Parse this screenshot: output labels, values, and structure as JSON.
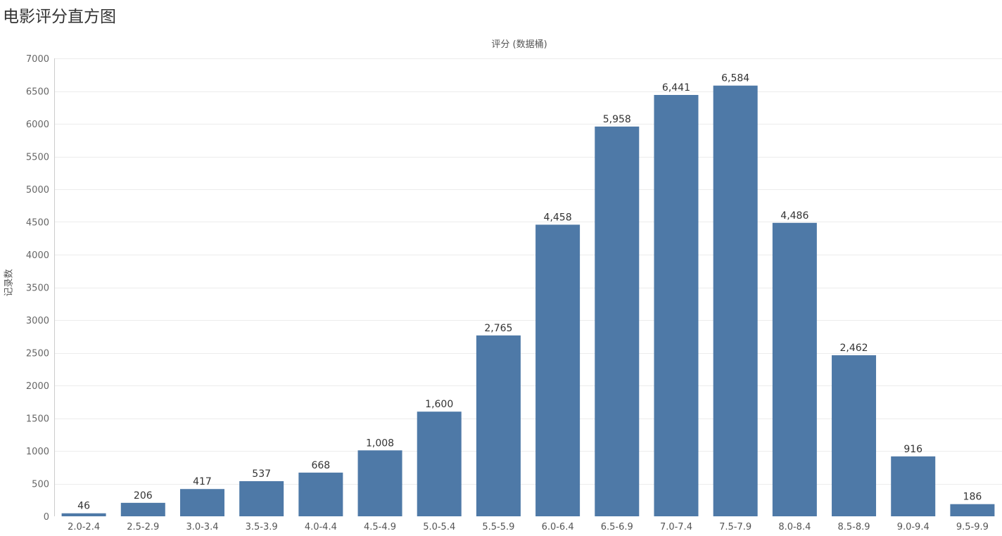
{
  "title": "电影评分直方图",
  "colors": {
    "bar": "#4e79a7",
    "grid": "#ececec",
    "axis": "#cccccc"
  },
  "chart_data": {
    "type": "bar",
    "title": "电影评分直方图",
    "xlabel": "评分 (数据桶)",
    "ylabel": "记录数",
    "ylim": [
      0,
      7000
    ],
    "yticks": [
      0,
      500,
      1000,
      1500,
      2000,
      2500,
      3000,
      3500,
      4000,
      4500,
      5000,
      5500,
      6000,
      6500,
      7000
    ],
    "grid": true,
    "categories": [
      "2.0-2.4",
      "2.5-2.9",
      "3.0-3.4",
      "3.5-3.9",
      "4.0-4.4",
      "4.5-4.9",
      "5.0-5.4",
      "5.5-5.9",
      "6.0-6.4",
      "6.5-6.9",
      "7.0-7.4",
      "7.5-7.9",
      "8.0-8.4",
      "8.5-8.9",
      "9.0-9.4",
      "9.5-9.9"
    ],
    "values": [
      46,
      206,
      417,
      537,
      668,
      1008,
      1600,
      2765,
      4458,
      5958,
      6441,
      6584,
      4486,
      2462,
      916,
      186
    ],
    "data_labels": [
      "46",
      "206",
      "417",
      "537",
      "668",
      "1,008",
      "1,600",
      "2,765",
      "4,458",
      "5,958",
      "6,441",
      "6,584",
      "4,486",
      "2,462",
      "916",
      "186"
    ]
  }
}
